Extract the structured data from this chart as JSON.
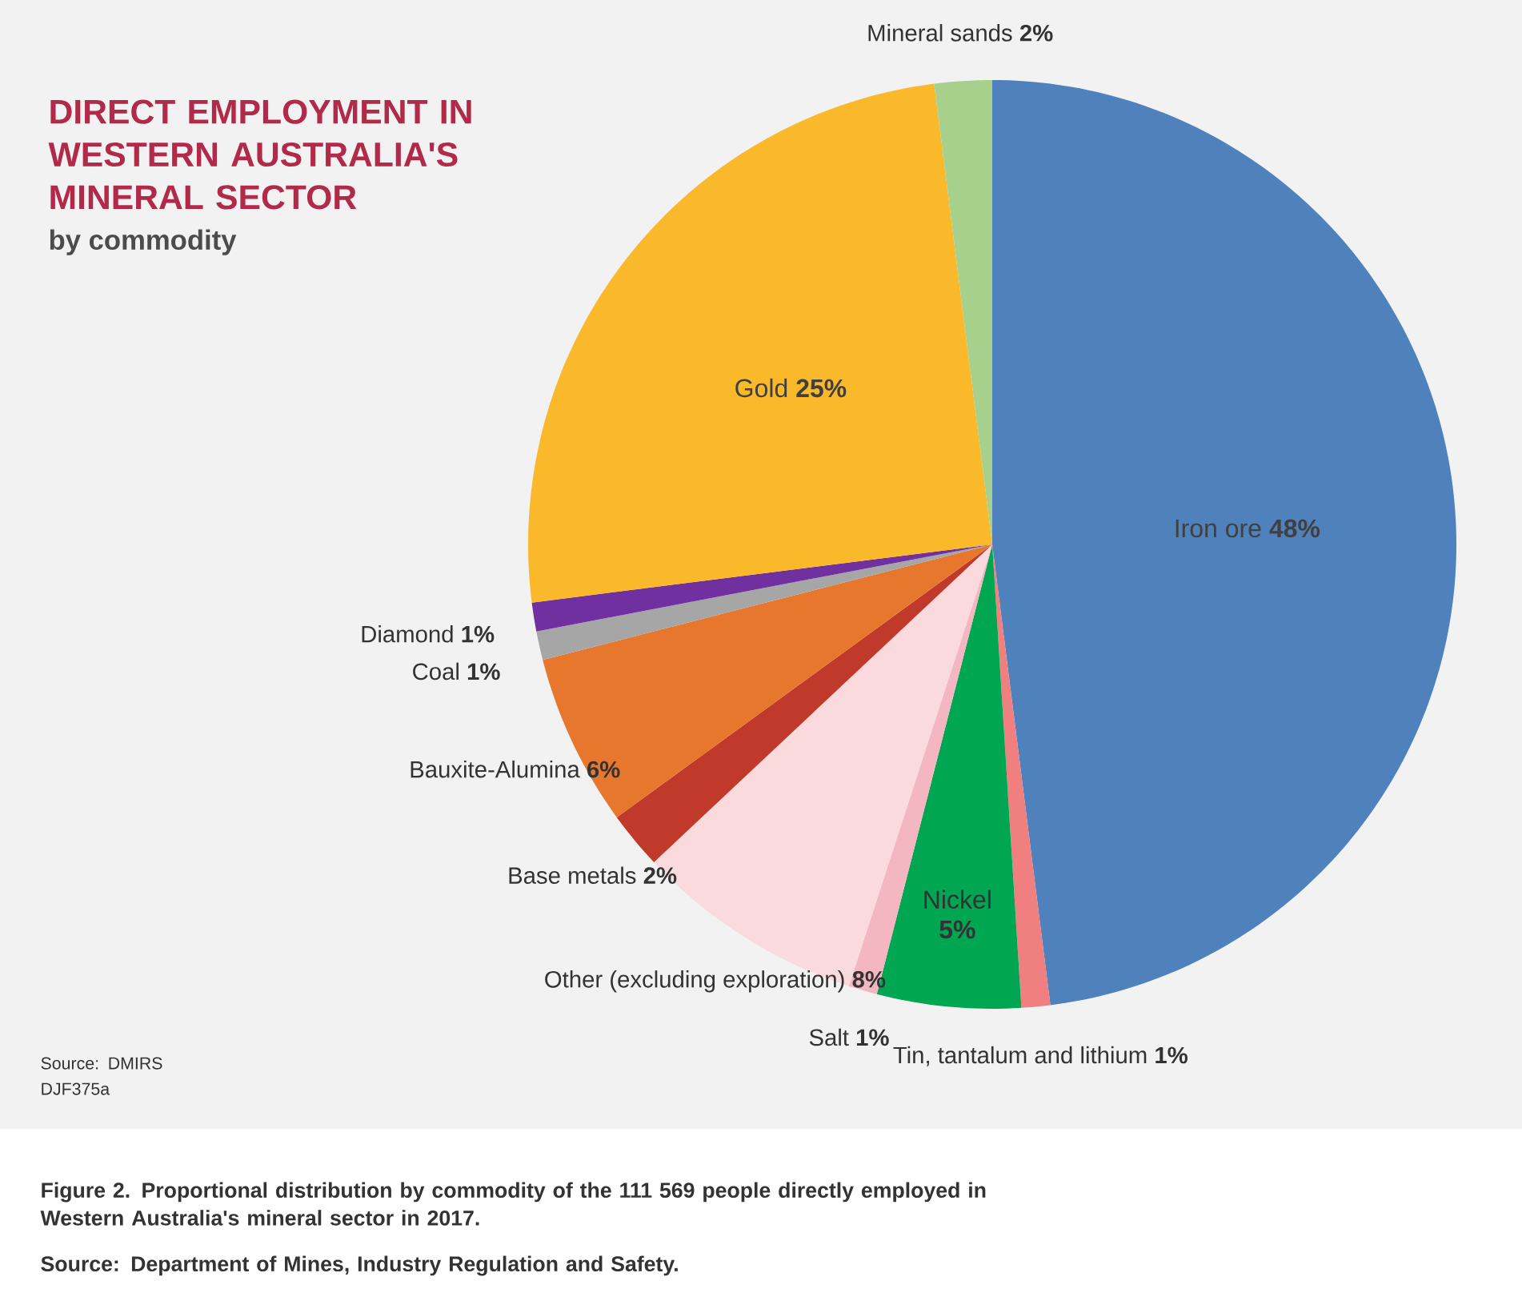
{
  "chart_data": {
    "type": "pie",
    "title": "DIRECT EMPLOYMENT IN WESTERN AUSTRALIA'S MINERAL SECTOR",
    "subtitle": "by commodity",
    "categories": [
      "Iron ore",
      "Tin, tantalum and lithium",
      "Nickel",
      "Salt",
      "Other (excluding exploration)",
      "Base metals",
      "Bauxite-Alumina",
      "Coal",
      "Diamond",
      "Gold",
      "Mineral sands"
    ],
    "values": [
      48,
      1,
      5,
      1,
      8,
      2,
      6,
      1,
      1,
      25,
      2
    ],
    "value_labels": [
      "48%",
      "1%",
      "5%",
      "1%",
      "8%",
      "2%",
      "6%",
      "1%",
      "1%",
      "25%",
      "2%"
    ],
    "colors": [
      "#4f81bd",
      "#f08080",
      "#00a651",
      "#f4b6c0",
      "#fadadd",
      "#c0392b",
      "#e8772e",
      "#a6a6a6",
      "#7030a0",
      "#f9b92b",
      "#a8d08d"
    ],
    "annotations": [
      "Source: DMIRS",
      "DJF375a",
      "Figure 2. Proportional distribution by commodity of the 111 569 people directly employed in Western Australia's mineral sector in 2017.",
      "Source: Department of Mines, Industry Regulation and Safety."
    ]
  }
}
